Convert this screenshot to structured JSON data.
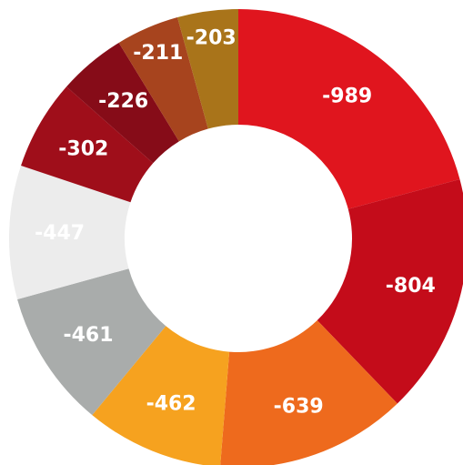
{
  "chart_data": {
    "type": "pie",
    "variant": "donut",
    "title": "",
    "legend": "none",
    "slices": [
      {
        "label": "-989",
        "value": -989,
        "color": "#e0151e"
      },
      {
        "label": "-804",
        "value": -804,
        "color": "#c40c1a"
      },
      {
        "label": "-639",
        "value": -639,
        "color": "#ee6a1d"
      },
      {
        "label": "-462",
        "value": -462,
        "color": "#f6a21f"
      },
      {
        "label": "-461",
        "value": -461,
        "color": "#a9acab"
      },
      {
        "label": "-447",
        "value": -447,
        "color": "#ececec"
      },
      {
        "label": "-302",
        "value": -302,
        "color": "#9f0e1a"
      },
      {
        "label": "-226",
        "value": -226,
        "color": "#860c18"
      },
      {
        "label": "-211",
        "value": -211,
        "color": "#a7441e"
      },
      {
        "label": "-203",
        "value": -203,
        "color": "#a9741a"
      }
    ]
  }
}
